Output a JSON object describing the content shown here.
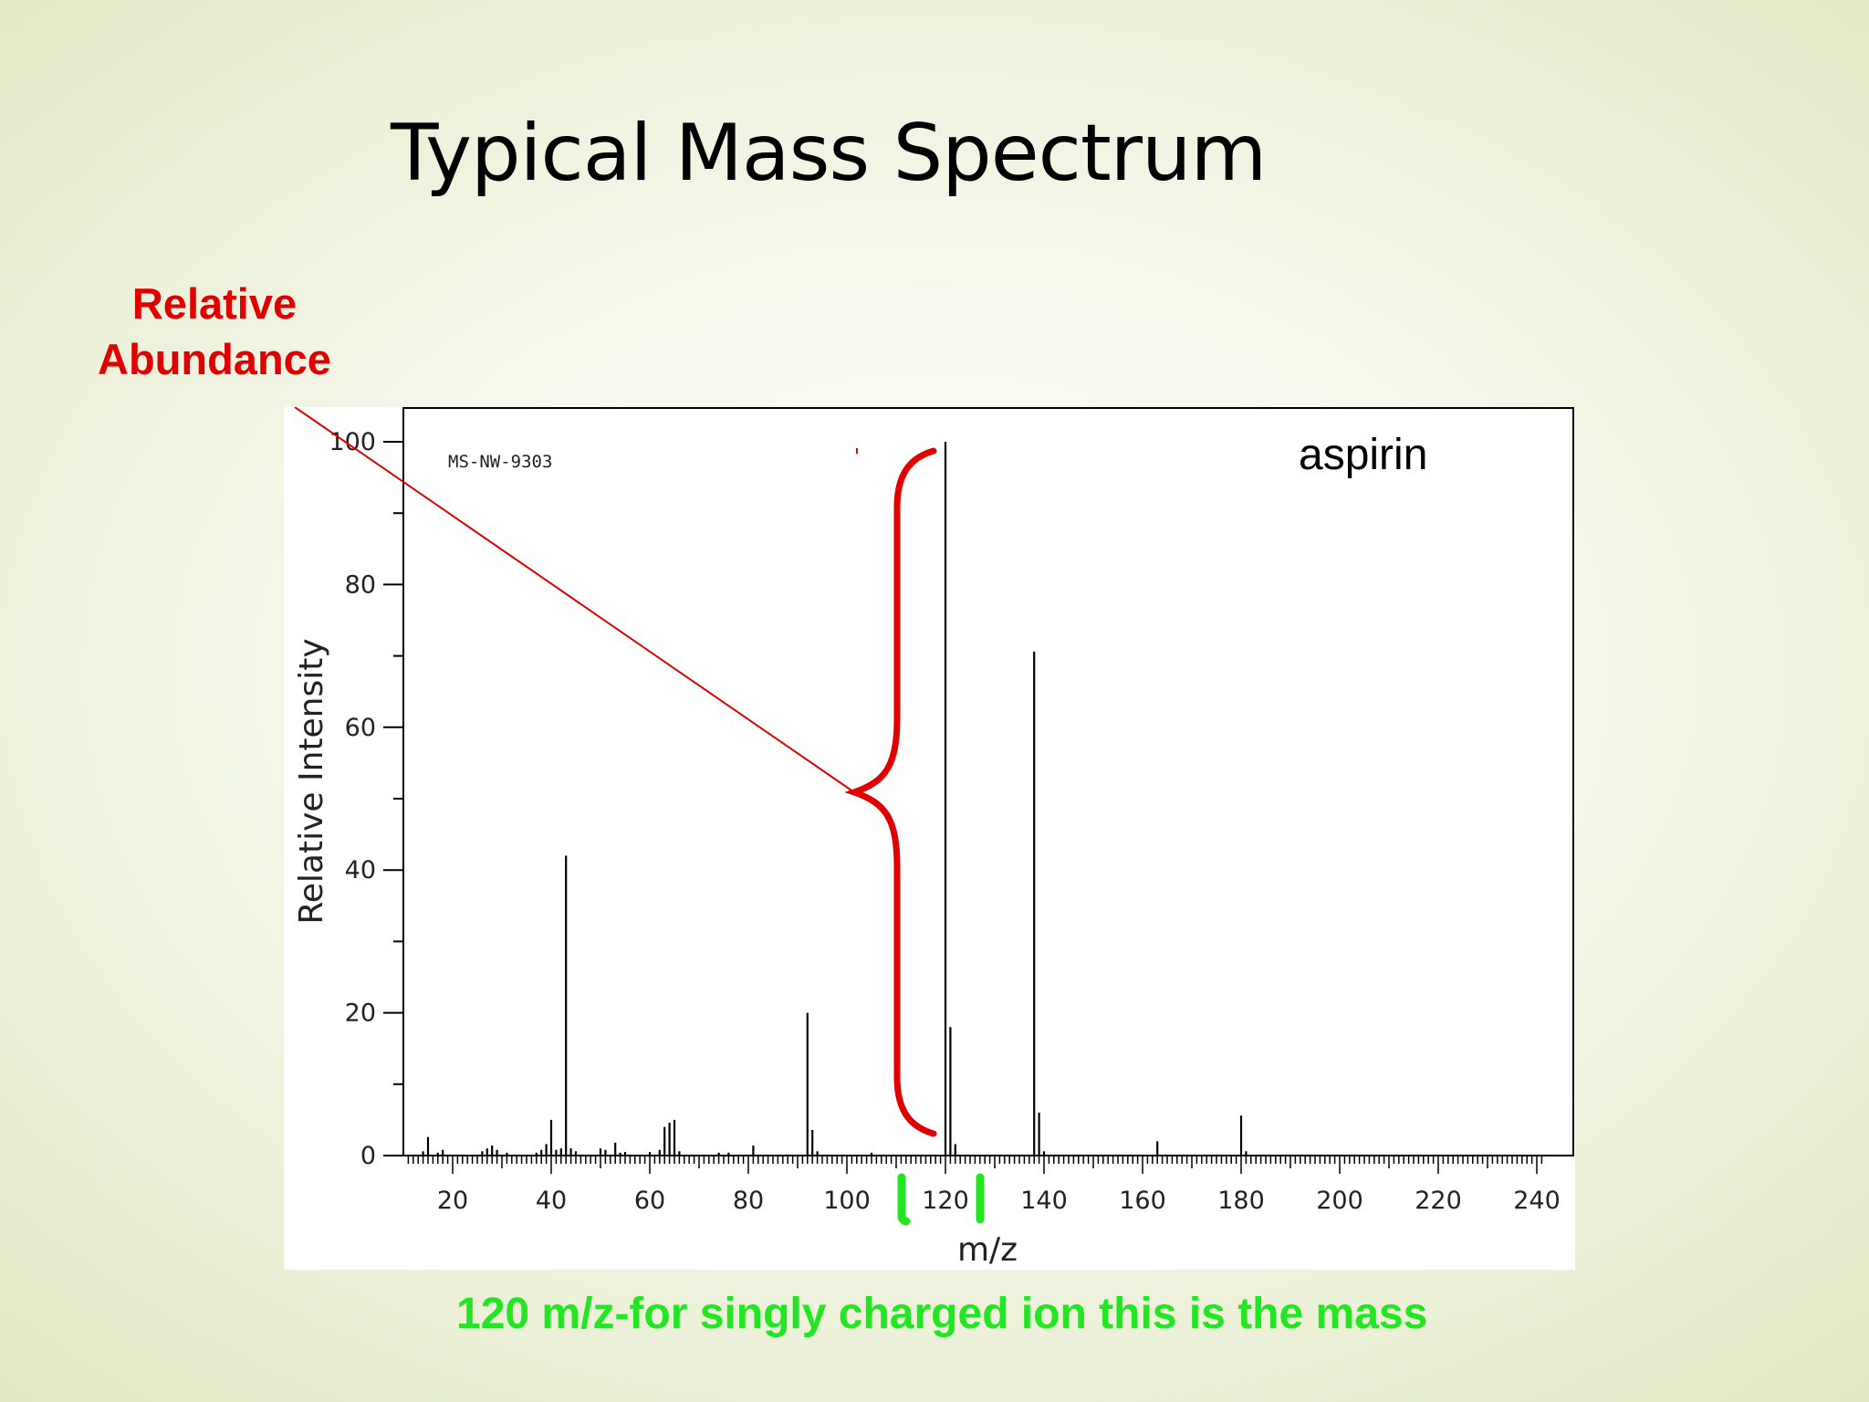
{
  "slide": {
    "title": "Typical Mass Spectrum",
    "annotation_label": "Relative\nAbundance",
    "caption": "120 m/z-for singly charged ion this is the mass"
  },
  "colors": {
    "annotation_red": "#e00000",
    "caption_green": "#22e622",
    "peak": "#000000"
  },
  "chart_data": {
    "type": "bar",
    "subtype": "mass-spectrum-stick",
    "ylabel": "Relative Intensity",
    "xlabel": "m/z",
    "spectrum_id": "MS-NW-9303",
    "compound": "aspirin",
    "xlim": [
      10,
      245
    ],
    "ylim": [
      0,
      100
    ],
    "x_ticks": [
      20,
      40,
      60,
      80,
      100,
      120,
      140,
      160,
      180,
      200,
      220,
      240
    ],
    "y_ticks": [
      0,
      20,
      40,
      60,
      80,
      100
    ],
    "grid": false,
    "peaks": [
      {
        "mz": 14,
        "intensity": 0.6
      },
      {
        "mz": 15,
        "intensity": 2.6
      },
      {
        "mz": 17,
        "intensity": 0.4
      },
      {
        "mz": 18,
        "intensity": 0.8
      },
      {
        "mz": 26,
        "intensity": 0.6
      },
      {
        "mz": 27,
        "intensity": 1.0
      },
      {
        "mz": 28,
        "intensity": 1.4
      },
      {
        "mz": 29,
        "intensity": 0.8
      },
      {
        "mz": 31,
        "intensity": 0.4
      },
      {
        "mz": 37,
        "intensity": 0.4
      },
      {
        "mz": 38,
        "intensity": 0.8
      },
      {
        "mz": 39,
        "intensity": 1.6
      },
      {
        "mz": 40,
        "intensity": 5.0
      },
      {
        "mz": 41,
        "intensity": 0.8
      },
      {
        "mz": 42,
        "intensity": 1.0
      },
      {
        "mz": 43,
        "intensity": 42.0
      },
      {
        "mz": 44,
        "intensity": 1.0
      },
      {
        "mz": 45,
        "intensity": 0.6
      },
      {
        "mz": 50,
        "intensity": 1.0
      },
      {
        "mz": 51,
        "intensity": 0.8
      },
      {
        "mz": 53,
        "intensity": 1.8
      },
      {
        "mz": 54,
        "intensity": 0.4
      },
      {
        "mz": 55,
        "intensity": 0.5
      },
      {
        "mz": 60,
        "intensity": 0.5
      },
      {
        "mz": 62,
        "intensity": 0.8
      },
      {
        "mz": 63,
        "intensity": 4.0
      },
      {
        "mz": 64,
        "intensity": 4.6
      },
      {
        "mz": 65,
        "intensity": 5.0
      },
      {
        "mz": 66,
        "intensity": 0.6
      },
      {
        "mz": 74,
        "intensity": 0.4
      },
      {
        "mz": 76,
        "intensity": 0.4
      },
      {
        "mz": 81,
        "intensity": 1.4
      },
      {
        "mz": 92,
        "intensity": 20.0
      },
      {
        "mz": 93,
        "intensity": 3.6
      },
      {
        "mz": 94,
        "intensity": 0.6
      },
      {
        "mz": 105,
        "intensity": 0.4
      },
      {
        "mz": 120,
        "intensity": 100.0
      },
      {
        "mz": 121,
        "intensity": 18.0
      },
      {
        "mz": 122,
        "intensity": 1.6
      },
      {
        "mz": 138,
        "intensity": 70.6
      },
      {
        "mz": 139,
        "intensity": 6.0
      },
      {
        "mz": 140,
        "intensity": 0.6
      },
      {
        "mz": 163,
        "intensity": 2.0
      },
      {
        "mz": 180,
        "intensity": 5.6
      },
      {
        "mz": 181,
        "intensity": 0.6
      }
    ]
  }
}
